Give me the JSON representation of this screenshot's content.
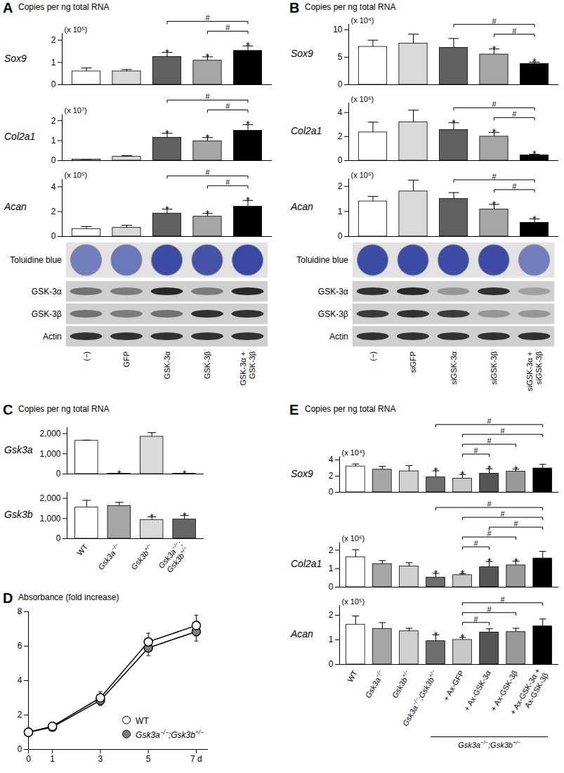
{
  "chart_data": [
    {
      "type": "bar",
      "panel": "A",
      "title": "Sox9",
      "ylabel": "Copies per ng total RNA",
      "scale_label": "(x 10⁵)",
      "categories": [
        "(−)",
        "GFP",
        "GSK-3α",
        "GSK-3β",
        "GSK-3α + GSK-3β"
      ],
      "values": [
        0.6,
        0.6,
        1.25,
        1.08,
        1.52
      ],
      "errors": [
        0.15,
        0.08,
        0.2,
        0.17,
        0.22
      ],
      "colors": [
        "#ffffff",
        "#d9d9d9",
        "#606060",
        "#a6a6a6",
        "#000000"
      ],
      "significance": [
        null,
        null,
        "*",
        "*",
        "*"
      ],
      "comparisons": [
        {
          "between": [
            "GSK-3β",
            "GSK-3α + GSK-3β"
          ],
          "label": "#"
        },
        {
          "between": [
            "GSK-3α",
            "GSK-3α + GSK-3β"
          ],
          "label": "#"
        }
      ],
      "ylim": [
        0,
        2.3
      ],
      "yticks": [
        0,
        1,
        2
      ]
    },
    {
      "type": "bar",
      "panel": "A",
      "title": "Col2a1",
      "scale_label": "(x 10⁷)",
      "categories": [
        "(−)",
        "GFP",
        "GSK-3α",
        "GSK-3β",
        "GSK-3α + GSK-3β"
      ],
      "values": [
        0.05,
        0.2,
        1.15,
        0.97,
        1.5
      ],
      "errors": [
        0.01,
        0.05,
        0.22,
        0.18,
        0.3
      ],
      "colors": [
        "#ffffff",
        "#d9d9d9",
        "#606060",
        "#a6a6a6",
        "#000000"
      ],
      "significance": [
        null,
        null,
        "*",
        "*",
        "*"
      ],
      "comparisons": [
        {
          "between": [
            "GSK-3β",
            "GSK-3α + GSK-3β"
          ],
          "label": "#"
        },
        {
          "between": [
            "GSK-3α",
            "GSK-3α + GSK-3β"
          ],
          "label": "#"
        }
      ],
      "ylim": [
        0,
        2.3
      ],
      "yticks": [
        0,
        1,
        2
      ]
    },
    {
      "type": "bar",
      "panel": "A",
      "title": "Acan",
      "scale_label": "(x 10⁵)",
      "categories": [
        "(−)",
        "GFP",
        "GSK-3α",
        "GSK-3β",
        "GSK-3α + GSK-3β"
      ],
      "values": [
        0.6,
        0.7,
        1.85,
        1.6,
        2.4
      ],
      "errors": [
        0.2,
        0.2,
        0.35,
        0.25,
        0.5
      ],
      "colors": [
        "#ffffff",
        "#d9d9d9",
        "#606060",
        "#a6a6a6",
        "#000000"
      ],
      "significance": [
        null,
        null,
        "*",
        "*",
        "*"
      ],
      "comparisons": [
        {
          "between": [
            "GSK-3β",
            "GSK-3α + GSK-3β"
          ],
          "label": "#"
        },
        {
          "between": [
            "GSK-3α",
            "GSK-3α + GSK-3β"
          ],
          "label": "#"
        }
      ],
      "ylim": [
        0,
        4.6
      ],
      "yticks": [
        0,
        2,
        4
      ]
    },
    {
      "type": "bar",
      "panel": "B",
      "title": "Sox9",
      "ylabel": "Copies per ng total RNA",
      "scale_label": "(x 10⁴)",
      "categories": [
        "(−)",
        "siGFP",
        "siGSK-3α",
        "siGSK-3β",
        "siGSK-3α + siGSK-3β"
      ],
      "values": [
        6.9,
        7.5,
        6.7,
        5.5,
        3.8
      ],
      "errors": [
        1.2,
        1.7,
        1.7,
        1.0,
        0.3
      ],
      "colors": [
        "#ffffff",
        "#d9d9d9",
        "#606060",
        "#a6a6a6",
        "#000000"
      ],
      "significance": [
        null,
        null,
        null,
        "*",
        "*"
      ],
      "comparisons": [
        {
          "between": [
            "siGSK-3β",
            "siGSK-3α + siGSK-3β"
          ],
          "label": "#"
        },
        {
          "between": [
            "siGSK-3α",
            "siGSK-3α + siGSK-3β"
          ],
          "label": "#"
        }
      ],
      "ylim": [
        0,
        11
      ],
      "yticks": [
        0,
        5,
        10
      ]
    },
    {
      "type": "bar",
      "panel": "B",
      "title": "Col2a1",
      "scale_label": "(x 10⁶)",
      "categories": [
        "(−)",
        "siGFP",
        "siGSK-3α",
        "siGSK-3β",
        "siGSK-3α + siGSK-3β"
      ],
      "values": [
        2.35,
        3.2,
        2.55,
        2.0,
        0.45
      ],
      "errors": [
        0.85,
        1.0,
        0.6,
        0.35,
        0.08
      ],
      "colors": [
        "#ffffff",
        "#d9d9d9",
        "#606060",
        "#a6a6a6",
        "#000000"
      ],
      "significance": [
        null,
        null,
        "*",
        "*",
        "*"
      ],
      "comparisons": [
        {
          "between": [
            "siGSK-3β",
            "siGSK-3α + siGSK-3β"
          ],
          "label": "#"
        },
        {
          "between": [
            "siGSK-3α",
            "siGSK-3α + siGSK-3β"
          ],
          "label": "#"
        }
      ],
      "ylim": [
        0,
        4.8
      ],
      "yticks": [
        0,
        2,
        4
      ]
    },
    {
      "type": "bar",
      "panel": "B",
      "title": "Acan",
      "scale_label": "(x 10⁵)",
      "categories": [
        "(−)",
        "siGFP",
        "siGSK-3α",
        "siGSK-3β",
        "siGSK-3α + siGSK-3β"
      ],
      "values": [
        1.4,
        1.8,
        1.5,
        1.08,
        0.55
      ],
      "errors": [
        0.2,
        0.45,
        0.25,
        0.2,
        0.15
      ],
      "colors": [
        "#ffffff",
        "#d9d9d9",
        "#606060",
        "#a6a6a6",
        "#000000"
      ],
      "significance": [
        null,
        null,
        null,
        "*",
        "*"
      ],
      "comparisons": [
        {
          "between": [
            "siGSK-3β",
            "siGSK-3α + siGSK-3β"
          ],
          "label": "#"
        },
        {
          "between": [
            "siGSK-3α",
            "siGSK-3α + siGSK-3β"
          ],
          "label": "#"
        }
      ],
      "ylim": [
        0,
        2.3
      ],
      "yticks": [
        0,
        1,
        2
      ]
    },
    {
      "type": "bar",
      "panel": "C",
      "title": "Gsk3a",
      "ylabel": "Copies per ng total RNA",
      "categories": [
        "WT",
        "Gsk3a−/−",
        "Gsk3b+/−",
        "Gsk3a−/−; Gsk3b+/−"
      ],
      "values": [
        1650,
        20,
        1850,
        20
      ],
      "errors": [
        30,
        5,
        200,
        5
      ],
      "colors": [
        "#ffffff",
        "#a6a6a6",
        "#d9d9d9",
        "#666666"
      ],
      "significance": [
        null,
        "*",
        null,
        "*"
      ],
      "ylim": [
        0,
        2300
      ],
      "yticks": [
        0,
        {
          "value": 1000,
          "label": "1,000"
        },
        {
          "value": 2000,
          "label": "2,000"
        }
      ]
    },
    {
      "type": "bar",
      "panel": "C",
      "title": "Gsk3b",
      "categories": [
        "WT",
        "Gsk3a−/−",
        "Gsk3b+/−",
        "Gsk3a−/−; Gsk3b+/−"
      ],
      "values": [
        1550,
        1620,
        930,
        950
      ],
      "errors": [
        350,
        180,
        150,
        200
      ],
      "colors": [
        "#ffffff",
        "#a6a6a6",
        "#d9d9d9",
        "#666666"
      ],
      "significance": [
        null,
        null,
        "*",
        "*"
      ],
      "ylim": [
        0,
        2300
      ],
      "yticks": [
        0,
        {
          "value": 1000,
          "label": "1,000"
        },
        {
          "value": 2000,
          "label": "2,000"
        }
      ]
    },
    {
      "type": "line",
      "panel": "D",
      "ylabel": "Absorbance (fold increase)",
      "x": [
        0,
        1,
        3,
        5,
        7
      ],
      "series": [
        {
          "name": "WT",
          "color": "#ffffff",
          "marker": "circle",
          "values": [
            1,
            1.35,
            3.0,
            6.25,
            7.2
          ],
          "errors": [
            0.05,
            0.2,
            0.35,
            0.5,
            0.6
          ]
        },
        {
          "name": "Gsk3a−/−;Gsk3b+/−",
          "color": "#808080",
          "marker": "circle",
          "values": [
            1,
            1.3,
            2.85,
            5.9,
            6.85
          ],
          "errors": [
            0.05,
            0.15,
            0.3,
            0.45,
            0.55
          ]
        }
      ],
      "xlim": [
        0,
        7.5
      ],
      "xticks": [
        0,
        1,
        3,
        5,
        {
          "value": 7,
          "label": "7 d"
        }
      ],
      "ylim": [
        0,
        8
      ],
      "yticks": [
        0,
        2,
        4,
        6,
        8
      ],
      "legend": "lower right"
    },
    {
      "type": "bar",
      "panel": "E",
      "title": "Sox9",
      "ylabel": "Copies per ng total RNA",
      "scale_label": "(x 10⁴)",
      "categories": [
        "WT",
        "Gsk3a−/−",
        "Gsk3b+/−",
        "Gsk3a−/−;Gsk3b+/−",
        "+ Ax-GFP",
        "+ Ax-GSK-3α",
        "+ Ax-GSK-3β",
        "+ Ax-GSK-3α + Ax-GSK-3β"
      ],
      "values": [
        3.2,
        2.8,
        2.6,
        1.85,
        1.7,
        2.3,
        2.55,
        2.95
      ],
      "errors": [
        0.3,
        0.4,
        0.7,
        0.8,
        0.5,
        0.6,
        0.3,
        0.5
      ],
      "colors": [
        "#ffffff",
        "#a6a6a6",
        "#d0d0d0",
        "#6e6e6e",
        "#c8c8c8",
        "#555555",
        "#999999",
        "#000000"
      ],
      "significance": [
        null,
        null,
        null,
        "*",
        "*",
        "*",
        "*",
        null
      ],
      "comparisons": [
        {
          "between": [
            "+ Ax-GFP",
            "+ Ax-GSK-3α"
          ],
          "label": "#"
        },
        {
          "between": [
            "+ Ax-GFP",
            "+ Ax-GSK-3β"
          ],
          "label": "#"
        },
        {
          "between": [
            "+ Ax-GFP",
            "+ Ax-GSK-3α + Ax-GSK-3β"
          ],
          "label": "#"
        },
        {
          "between": [
            "Gsk3a−/−;Gsk3b+/−",
            "+ Ax-GSK-3α + Ax-GSK-3β"
          ],
          "label": "#"
        }
      ],
      "ylim": [
        0,
        4.4
      ],
      "yticks": [
        0,
        2,
        4
      ]
    },
    {
      "type": "bar",
      "panel": "E",
      "title": "Col2a1",
      "scale_label": "(x 10⁶)",
      "categories": [
        "WT",
        "Gsk3a−/−",
        "Gsk3b+/−",
        "Gsk3a−/−;Gsk3b+/−",
        "+ Ax-GFP",
        "+ Ax-GSK-3α",
        "+ Ax-GSK-3β",
        "+ Ax-GSK-3α + Ax-GSK-3β"
      ],
      "values": [
        1.62,
        1.25,
        1.12,
        0.52,
        0.65,
        1.08,
        1.18,
        1.55
      ],
      "errors": [
        0.4,
        0.18,
        0.2,
        0.22,
        0.08,
        0.3,
        0.22,
        0.38
      ],
      "colors": [
        "#ffffff",
        "#a6a6a6",
        "#d0d0d0",
        "#6e6e6e",
        "#c8c8c8",
        "#555555",
        "#999999",
        "#000000"
      ],
      "significance": [
        null,
        null,
        null,
        "*",
        "*",
        "*",
        "*",
        null
      ],
      "comparisons": [
        {
          "between": [
            "+ Ax-GFP",
            "+ Ax-GSK-3α"
          ],
          "label": "#"
        },
        {
          "between": [
            "+ Ax-GFP",
            "+ Ax-GSK-3β"
          ],
          "label": "#"
        },
        {
          "between": [
            "+ Ax-GFP",
            "+ Ax-GSK-3α + Ax-GSK-3β"
          ],
          "label": "#"
        },
        {
          "between": [
            "Gsk3a−/−;Gsk3b+/−",
            "+ Ax-GSK-3α + Ax-GSK-3β"
          ],
          "label": "#"
        },
        {
          "between": [
            "+ Ax-GSK-3α",
            "+ Ax-GSK-3α + Ax-GSK-3β"
          ],
          "label": "#"
        }
      ],
      "ylim": [
        0,
        2.4
      ],
      "yticks": [
        0,
        1,
        2
      ]
    },
    {
      "type": "bar",
      "panel": "E",
      "title": "Acan",
      "scale_label": "(x 10⁵)",
      "categories": [
        "WT",
        "Gsk3a−/−",
        "Gsk3b+/−",
        "Gsk3a−/−;Gsk3b+/−",
        "+ Ax-GFP",
        "+ Ax-GSK-3α",
        "+ Ax-GSK-3β",
        "+ Ax-GSK-3α + Ax-GSK-3β"
      ],
      "values": [
        1.62,
        1.45,
        1.35,
        0.95,
        1.0,
        1.3,
        1.32,
        1.55
      ],
      "errors": [
        0.35,
        0.25,
        0.12,
        0.25,
        0.1,
        0.15,
        0.15,
        0.3
      ],
      "colors": [
        "#ffffff",
        "#a6a6a6",
        "#d0d0d0",
        "#6e6e6e",
        "#c8c8c8",
        "#555555",
        "#999999",
        "#000000"
      ],
      "significance": [
        null,
        null,
        null,
        "*",
        "*",
        null,
        null,
        null
      ],
      "comparisons": [
        {
          "between": [
            "+ Ax-GFP",
            "+ Ax-GSK-3α"
          ],
          "label": "#"
        },
        {
          "between": [
            "+ Ax-GFP",
            "+ Ax-GSK-3β"
          ],
          "label": "#"
        },
        {
          "between": [
            "+ Ax-GFP",
            "+ Ax-GSK-3α + Ax-GSK-3β"
          ],
          "label": "#"
        }
      ],
      "ylim": [
        0,
        2.4
      ],
      "yticks": [
        0,
        1,
        2
      ]
    }
  ],
  "panels": [
    {
      "label": "A",
      "staining": {
        "label": "Toluidine blue",
        "intensity": [
          0.55,
          0.6,
          0.9,
          0.85,
          0.92
        ]
      },
      "blots": [
        {
          "label": "GSK-3α",
          "intensity": [
            0.5,
            0.45,
            0.9,
            0.45,
            0.9
          ]
        },
        {
          "label": "GSK-3β",
          "intensity": [
            0.5,
            0.45,
            0.5,
            0.85,
            0.85
          ]
        },
        {
          "label": "Actin",
          "intensity": [
            0.85,
            0.85,
            0.85,
            0.85,
            0.85
          ]
        }
      ]
    },
    {
      "label": "B",
      "staining": {
        "label": "Toluidine blue",
        "intensity": [
          0.9,
          0.9,
          0.9,
          0.9,
          0.55
        ]
      },
      "blots": [
        {
          "label": "GSK-3α",
          "intensity": [
            0.85,
            0.9,
            0.3,
            0.85,
            0.25
          ]
        },
        {
          "label": "GSK-3β",
          "intensity": [
            0.8,
            0.85,
            0.8,
            0.3,
            0.3
          ]
        },
        {
          "label": "Actin",
          "intensity": [
            0.85,
            0.85,
            0.85,
            0.85,
            0.85
          ]
        }
      ]
    },
    {
      "label": "C"
    },
    {
      "label": "D"
    },
    {
      "label": "E",
      "group": {
        "label": "Gsk3a−/−;Gsk3b+/−",
        "from": "+ Ax-GFP",
        "to": "+ Ax-GSK-3α + Ax-GSK-3β"
      }
    }
  ]
}
